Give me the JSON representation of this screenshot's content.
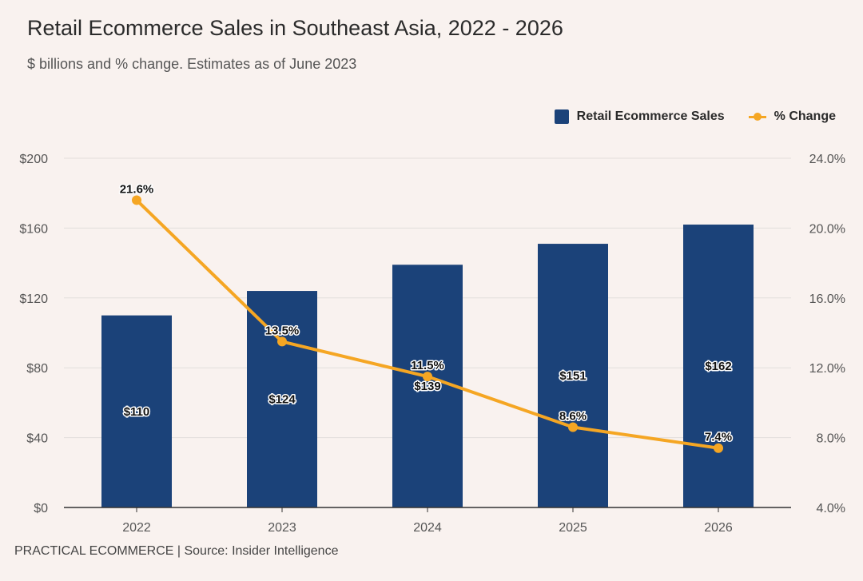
{
  "header": {
    "title": "Retail Ecommerce Sales in Southeast Asia, 2022 - 2026",
    "subtitle": "$ billions and % change. Estimates as of June 2023"
  },
  "footer": {
    "text": "PRACTICAL ECOMMERCE | Source: Insider Intelligence"
  },
  "legend": {
    "position": "top-right",
    "bar_label": "Retail Ecommerce Sales",
    "line_label": "% Change"
  },
  "colors": {
    "background": "#f9f2ef",
    "bar": "#1b4279",
    "line": "#f5a623",
    "grid": "#e2dedb",
    "axis": "#333333"
  },
  "chart_data": {
    "type": "bar",
    "categories": [
      "2022",
      "2023",
      "2024",
      "2025",
      "2026"
    ],
    "series": [
      {
        "name": "Retail Ecommerce Sales",
        "type": "bar",
        "axis": "left",
        "values": [
          110,
          124,
          139,
          151,
          162
        ],
        "labels": [
          "$110",
          "$124",
          "$139",
          "$151",
          "$162"
        ]
      },
      {
        "name": "% Change",
        "type": "line",
        "axis": "right",
        "values": [
          21.6,
          13.5,
          11.5,
          8.6,
          7.4
        ],
        "labels": [
          "21.6%",
          "13.5%",
          "11.5%",
          "8.6%",
          "7.4%"
        ]
      }
    ],
    "ylim_left": [
      0,
      200
    ],
    "ylim_right": [
      4,
      24
    ],
    "yticks_left": [
      "$0",
      "$40",
      "$80",
      "$120",
      "$160",
      "$200"
    ],
    "yticks_right": [
      "4.0%",
      "8.0%",
      "12.0%",
      "16.0%",
      "20.0%",
      "24.0%"
    ],
    "grid": true
  }
}
